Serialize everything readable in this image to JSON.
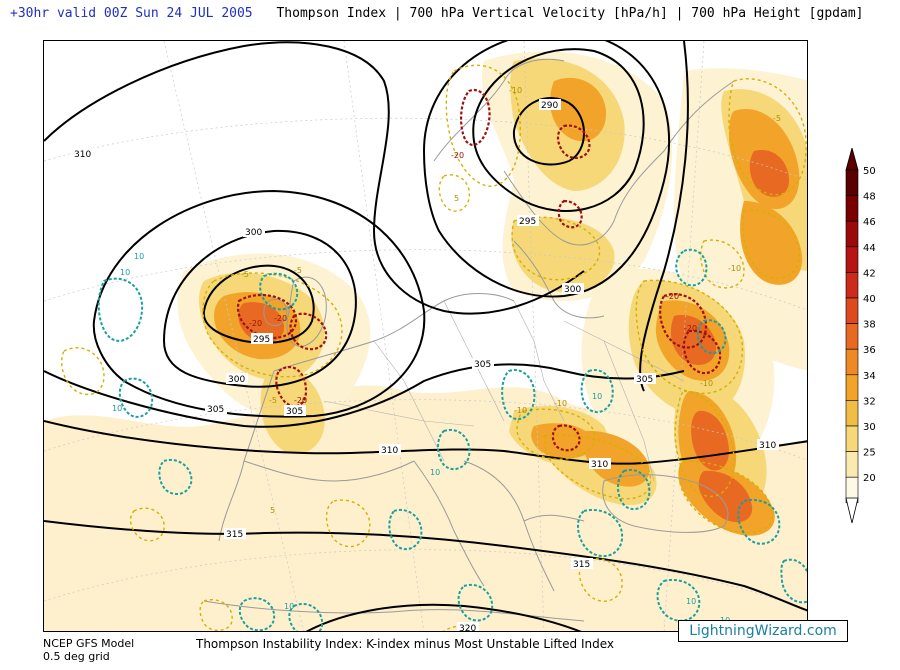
{
  "header": {
    "valid_time": "+30hr valid 00Z Sun 24 JUL 2005",
    "title": "Thompson Index | 700 hPa Vertical Velocity [hPa/h] | 700 hPa Height [gpdam]"
  },
  "footer": {
    "model_line1": "NCEP GFS Model",
    "model_line2": "0.5 deg grid",
    "description": "Thompson Instability Index: K-index minus Most Unstable Lifted Index",
    "brand": "LightningWizard.com"
  },
  "colorbar": {
    "labels": [
      "50",
      "48",
      "46",
      "44",
      "42",
      "40",
      "38",
      "36",
      "34",
      "32",
      "30",
      "25",
      "20"
    ],
    "colors": [
      "#5a0000",
      "#7a0000",
      "#9a0a0a",
      "#b81414",
      "#cc2a1a",
      "#dd4a1e",
      "#e86a22",
      "#ee8a26",
      "#f2a42a",
      "#f0be44",
      "#f6d878",
      "#fbeab0",
      "#fef8e6"
    ]
  },
  "contour_labels": {
    "height": [
      "310",
      "300",
      "295",
      "300",
      "305",
      "290",
      "295",
      "300",
      "305",
      "310",
      "310",
      "315",
      "315",
      "320",
      "305",
      "310",
      "305"
    ],
    "velocity": [
      "-20",
      "-20",
      "-5",
      "-5",
      "-20",
      "-20",
      "-5",
      "-10",
      "-20",
      "-20",
      "-10",
      "-10",
      "-10",
      "10",
      "10",
      "10",
      "10",
      "10",
      "-10",
      "-5",
      "5",
      "5",
      "10",
      "10",
      "10"
    ]
  },
  "colors": {
    "accent_blue": "#2030c0",
    "height_contour": "#000000",
    "coast": "#9a9a9a",
    "vv_negative_strong": "#a01010",
    "vv_negative_weak": "#d4b000",
    "vv_positive": "#1aa0a0",
    "brand": "#1a7fa0"
  }
}
